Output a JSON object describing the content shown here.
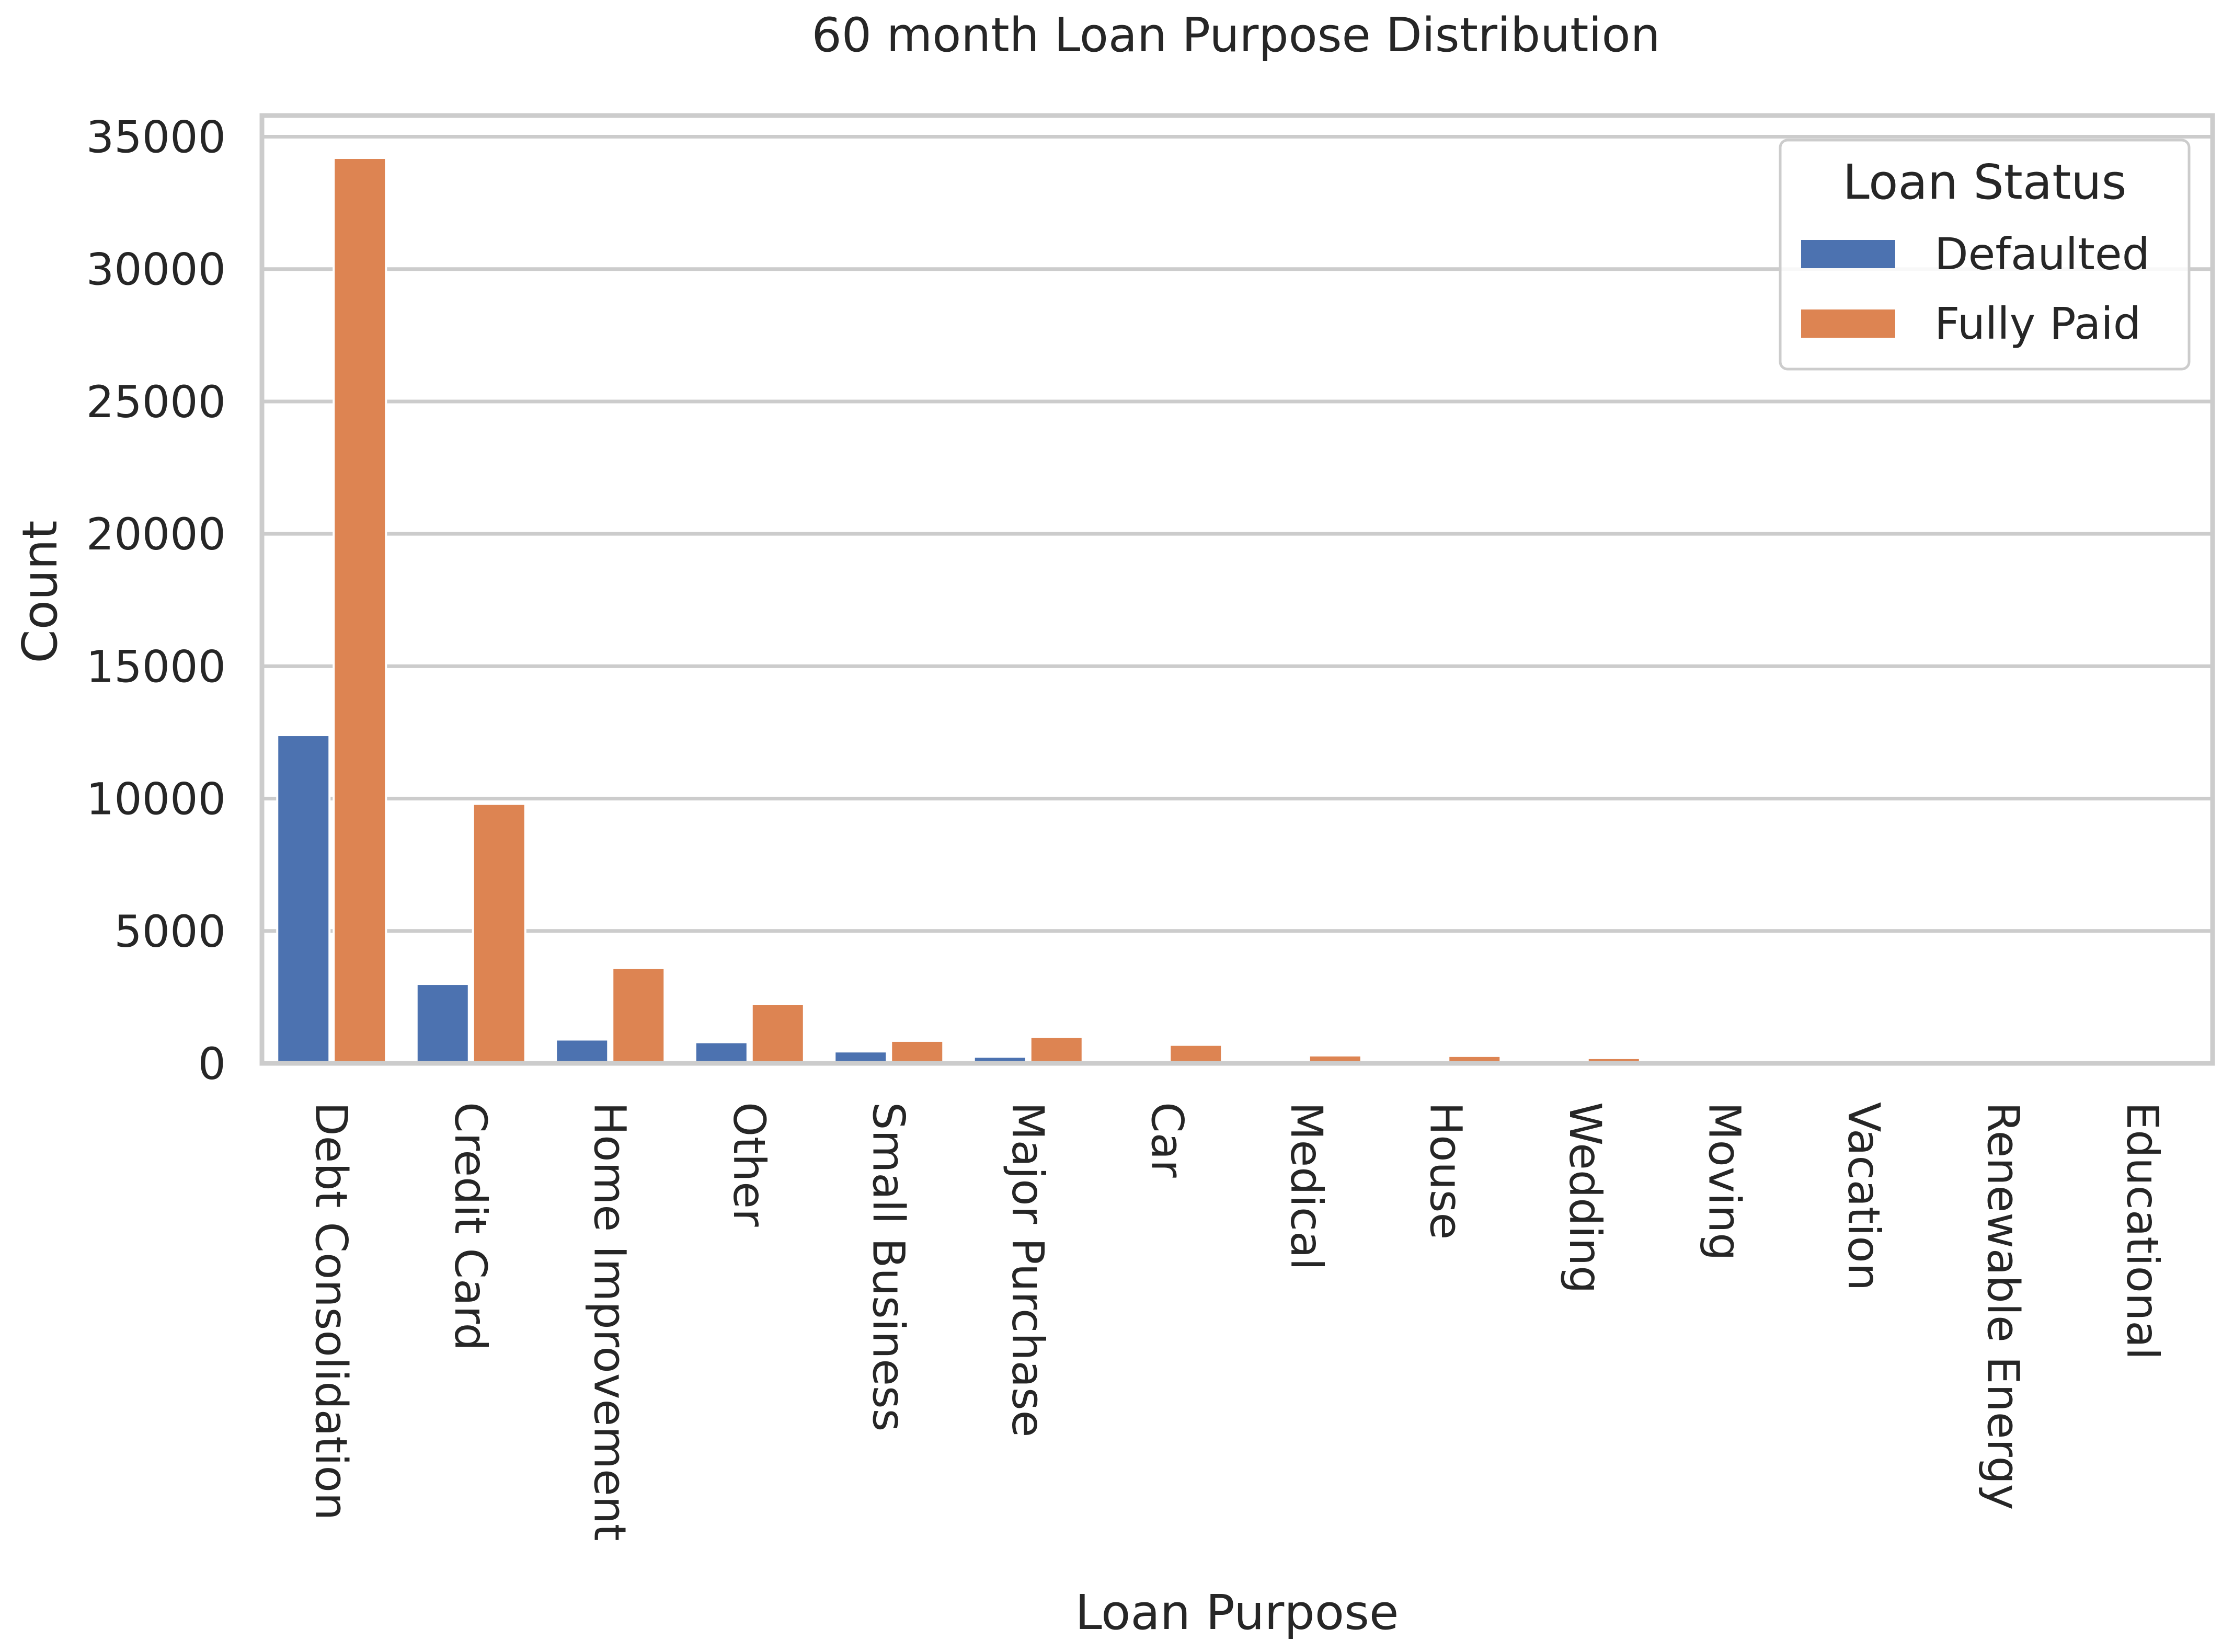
{
  "chart_data": {
    "type": "bar",
    "title": "60 month Loan Purpose Distribution",
    "xlabel": "Loan Purpose",
    "ylabel": "Count",
    "ylim": [
      0,
      35800
    ],
    "yticks": [
      0,
      5000,
      10000,
      15000,
      20000,
      25000,
      30000,
      35000
    ],
    "ytick_labels": [
      "0",
      "5000",
      "10000",
      "15000",
      "20000",
      "25000",
      "30000",
      "35000"
    ],
    "categories": [
      "Debt Consolidation",
      "Credit Card",
      "Home Improvement",
      "Other",
      "Small Business",
      "Major Purchase",
      "Car",
      "Medical",
      "House",
      "Wedding",
      "Moving",
      "Vacation",
      "Renewable Energy",
      "Educational"
    ],
    "series": [
      {
        "name": "Defaulted",
        "color": "#4c72b0",
        "values": [
          12400,
          3000,
          900,
          800,
          450,
          250,
          40,
          60,
          50,
          40,
          20,
          10,
          5,
          0
        ]
      },
      {
        "name": "Fully Paid",
        "color": "#dd8452",
        "values": [
          34200,
          9800,
          3600,
          2250,
          850,
          1000,
          700,
          300,
          280,
          200,
          20,
          15,
          5,
          0
        ]
      }
    ],
    "grid": true,
    "legend": {
      "title": "Loan Status",
      "placement": "top-right"
    }
  }
}
